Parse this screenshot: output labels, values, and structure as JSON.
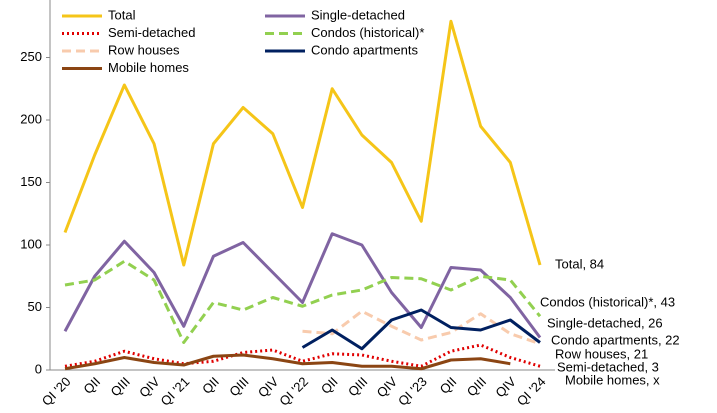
{
  "chart_data": {
    "type": "line",
    "categories": [
      "QI '20",
      "QII",
      "QIII",
      "QIV",
      "QI '21",
      "QII",
      "QIII",
      "QIV",
      "QI '22",
      "QII",
      "QIII",
      "QIV",
      "QI '23",
      "QII",
      "QIII",
      "QIV",
      "QI '24"
    ],
    "series": [
      {
        "name": "Total",
        "color": "#f5c518",
        "style": "solid",
        "values": [
          110,
          172,
          228,
          181,
          84,
          181,
          210,
          189,
          130,
          225,
          188,
          166,
          119,
          279,
          195,
          166,
          84
        ]
      },
      {
        "name": "Single-detached",
        "color": "#8064a2",
        "style": "solid",
        "values": [
          31,
          75,
          103,
          78,
          35,
          91,
          102,
          78,
          54,
          109,
          100,
          62,
          34,
          82,
          80,
          58,
          26
        ]
      },
      {
        "name": "Semi-detached",
        "color": "#e00000",
        "style": "dotted",
        "values": [
          3,
          7,
          15,
          9,
          5,
          7,
          14,
          16,
          7,
          13,
          12,
          7,
          3,
          15,
          20,
          10,
          3
        ]
      },
      {
        "name": "Condos (historical)*",
        "color": "#92d050",
        "style": "dashed",
        "values": [
          68,
          72,
          87,
          72,
          22,
          54,
          48,
          58,
          51,
          60,
          64,
          74,
          73,
          64,
          75,
          72,
          43
        ]
      },
      {
        "name": "Row houses",
        "color": "#f8cbad",
        "style": "dashed",
        "values": [
          null,
          null,
          null,
          null,
          null,
          null,
          null,
          null,
          31,
          29,
          47,
          35,
          24,
          30,
          45,
          29,
          21
        ]
      },
      {
        "name": "Condo apartments",
        "color": "#002060",
        "style": "solid",
        "values": [
          null,
          null,
          null,
          null,
          null,
          null,
          null,
          null,
          18,
          32,
          17,
          40,
          48,
          34,
          32,
          40,
          22
        ]
      },
      {
        "name": "Mobile homes",
        "color": "#8b4513",
        "style": "solid",
        "values": [
          1,
          5,
          10,
          6,
          4,
          11,
          12,
          9,
          5,
          6,
          3,
          3,
          1,
          8,
          9,
          5,
          null
        ]
      }
    ],
    "annotations": [
      "Total, 84",
      "Condos (historical)*, 43",
      "Single-detached, 26",
      "Condo apartments, 22",
      "Row houses, 21",
      "Semi-detached, 3",
      "Mobile homes, x"
    ],
    "ylim": [
      0,
      300
    ],
    "yticks": [
      0,
      50,
      100,
      150,
      200,
      250,
      300
    ]
  }
}
